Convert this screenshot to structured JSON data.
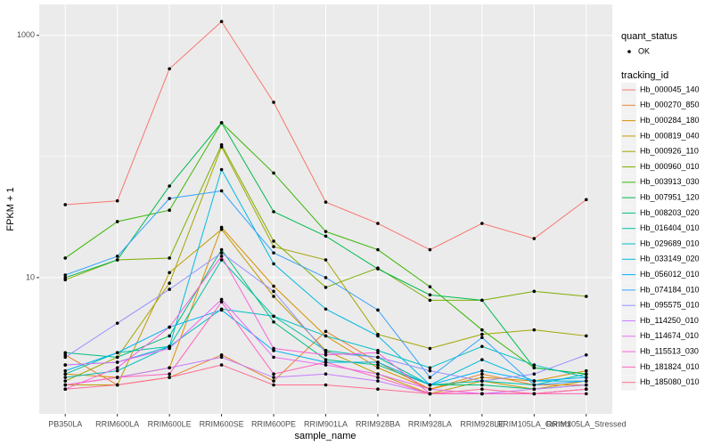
{
  "chart_data": {
    "type": "line",
    "x_label": "sample_name",
    "y_label": "FPKM + 1",
    "log_scale": true,
    "grid": true,
    "ylim": [
      0.75,
      1800
    ],
    "yticks": [
      10,
      1000
    ],
    "categories": [
      "PB350LA",
      "RRIM600LA",
      "RRIM600LE",
      "RRIM600SE",
      "RRIM600PE",
      "RRIM901LA",
      "RRIM928BA",
      "RRIM928LA",
      "RRIM928LE",
      "RRIM105LA_Control",
      "RRIM105LA_Stressed"
    ],
    "point_legend_title": "quant_status",
    "point_legend_label": "OK",
    "point_color": "#000000",
    "legend_title": "tracking_id",
    "series": [
      {
        "name": "Hb_000045_140",
        "color": "#F8766D",
        "values": [
          40,
          43,
          530,
          1300,
          280,
          42,
          28,
          17,
          28,
          21,
          44
        ]
      },
      {
        "name": "Hb_000270_850",
        "color": "#EA8331",
        "values": [
          2.3,
          1.3,
          1.5,
          2.3,
          1.4,
          3.6,
          2.0,
          1.2,
          1.6,
          1.3,
          1.3
        ]
      },
      {
        "name": "Hb_000284_180",
        "color": "#D89000",
        "values": [
          1.6,
          1.5,
          1.8,
          26,
          8.5,
          3.3,
          1.8,
          1.2,
          1.5,
          1.4,
          1.7
        ]
      },
      {
        "name": "Hb_000819_040",
        "color": "#C09B00",
        "values": [
          1.3,
          1.3,
          11,
          25,
          7,
          2.5,
          1.6,
          1.1,
          1.4,
          1.2,
          1.4
        ]
      },
      {
        "name": "Hb_000926_110",
        "color": "#A3A500",
        "values": [
          1.4,
          2.2,
          9,
          120,
          18,
          14,
          3.4,
          2.6,
          3.4,
          3.7,
          3.3
        ]
      },
      {
        "name": "Hb_000960_010",
        "color": "#7CAE00",
        "values": [
          9.6,
          14,
          14.5,
          125,
          20,
          8.3,
          12,
          6.5,
          6.5,
          7.7,
          7.0
        ]
      },
      {
        "name": "Hb_003913_030",
        "color": "#39B600",
        "values": [
          14.5,
          29,
          36,
          190,
          73,
          24,
          17,
          8.4,
          3.7,
          1.8,
          1.6
        ]
      },
      {
        "name": "Hb_007951_120",
        "color": "#00BB4E",
        "values": [
          10,
          14,
          57,
          190,
          35,
          22,
          11.8,
          7.2,
          6.5,
          1.8,
          1.6
        ]
      },
      {
        "name": "Hb_008203_020",
        "color": "#00BF7D",
        "values": [
          2.4,
          2.2,
          3.3,
          17,
          4.3,
          2.1,
          1.9,
          1.3,
          1.3,
          1.2,
          1.3
        ]
      },
      {
        "name": "Hb_016404_010",
        "color": "#00C1A3",
        "values": [
          1.6,
          2.4,
          2.7,
          14,
          4.8,
          2.5,
          2.2,
          1.3,
          1.4,
          1.3,
          1.6
        ]
      },
      {
        "name": "Hb_029689_010",
        "color": "#00BFC4",
        "values": [
          1.5,
          1.7,
          2.7,
          5.5,
          4.8,
          3.3,
          2.5,
          1.8,
          2.7,
          1.9,
          1.5
        ]
      },
      {
        "name": "Hb_033149_020",
        "color": "#00BAE0",
        "values": [
          1.9,
          2.0,
          2.7,
          78,
          13,
          5.5,
          3.3,
          1.3,
          2.1,
          1.4,
          1.4
        ]
      },
      {
        "name": "Hb_056012_010",
        "color": "#00B0F6",
        "values": [
          1.7,
          2.4,
          3.9,
          5.4,
          2.5,
          2.0,
          2.0,
          1.3,
          1.7,
          1.4,
          1.5
        ]
      },
      {
        "name": "Hb_074184_010",
        "color": "#35A2FF",
        "values": [
          10.5,
          15,
          45,
          52,
          16,
          10,
          5.4,
          1.5,
          3.2,
          1.3,
          1.4
        ]
      },
      {
        "name": "Hb_095575_010",
        "color": "#9590FF",
        "values": [
          2.2,
          4.2,
          8,
          16,
          7.7,
          2.4,
          2.2,
          1.7,
          1.4,
          1.6,
          2.3
        ]
      },
      {
        "name": "Hb_114250_010",
        "color": "#C77CFF",
        "values": [
          1.3,
          1.5,
          1.8,
          2.2,
          1.5,
          1.6,
          1.4,
          1.1,
          1.1,
          1.2,
          1.3
        ]
      },
      {
        "name": "Hb_114674_010",
        "color": "#E76BF3",
        "values": [
          1.9,
          2.0,
          2.6,
          6.6,
          2.2,
          1.9,
          1.6,
          1.2,
          1.1,
          1.1,
          1.2
        ]
      },
      {
        "name": "Hb_115513_030",
        "color": "#FA62DB",
        "values": [
          1.2,
          1.8,
          3.9,
          15,
          2.6,
          2.3,
          2.4,
          1.1,
          1.1,
          1.1,
          1.2
        ]
      },
      {
        "name": "Hb_181824_010",
        "color": "#FF62BC",
        "values": [
          1.3,
          1.5,
          1.6,
          6.3,
          1.6,
          2.0,
          1.5,
          1.1,
          1.1,
          1.1,
          1.1
        ]
      },
      {
        "name": "Hb_185080_010",
        "color": "#FF6C91",
        "values": [
          1.2,
          1.3,
          1.5,
          1.9,
          1.3,
          1.3,
          1.2,
          1.1,
          1.2,
          1.1,
          1.2
        ]
      }
    ]
  }
}
